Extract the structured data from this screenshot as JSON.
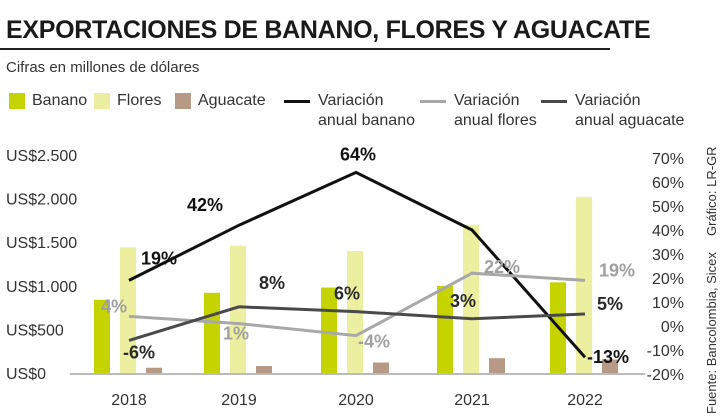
{
  "title": "EXPORTACIONES DE BANANO, FLORES Y AGUACATE",
  "subtitle": "Cifras en millones de dólares",
  "credit": "Gráfico: LR-GR",
  "source": "Fuente: Bancolombia, Sicex",
  "colors": {
    "banano": "#c5d300",
    "flores": "#ecef9f",
    "aguacate": "#b69a86",
    "var_banano": "#111111",
    "var_flores": "#a8a8a8",
    "var_aguacate": "#4a4a4a"
  },
  "chart_data": {
    "type": "bar",
    "categories": [
      "2018",
      "2019",
      "2020",
      "2021",
      "2022"
    ],
    "series": [
      {
        "name": "Banano",
        "type": "bar",
        "axis": "left",
        "values": [
          840,
          920,
          980,
          1000,
          1040
        ]
      },
      {
        "name": "Flores",
        "type": "bar",
        "axis": "left",
        "values": [
          1440,
          1460,
          1400,
          1700,
          2020
        ]
      },
      {
        "name": "Aguacate",
        "type": "bar",
        "axis": "left",
        "values": [
          60,
          80,
          120,
          170,
          155
        ]
      },
      {
        "name": "Variación\nanual banano",
        "type": "line",
        "axis": "right",
        "values": [
          19,
          42,
          64,
          40,
          -13
        ],
        "labels": [
          "19%",
          "42%",
          "64%",
          "",
          "-13%"
        ]
      },
      {
        "name": "Variación\nanual flores",
        "type": "line",
        "axis": "right",
        "values": [
          4,
          1,
          -4,
          22,
          19
        ],
        "labels": [
          "4%",
          "1%",
          "-4%",
          "22%",
          "19%"
        ]
      },
      {
        "name": "Variación\nanual aguacate",
        "type": "line",
        "axis": "right",
        "values": [
          -6,
          8,
          6,
          3,
          5
        ],
        "labels": [
          "-6%",
          "8%",
          "6%",
          "3%",
          "5%"
        ]
      }
    ],
    "y_left": {
      "ticks": [
        0,
        500,
        1000,
        1500,
        2000,
        2500
      ],
      "tick_labels": [
        "US$0",
        "US$500",
        "US$1.000",
        "US$1.500",
        "US$2.000",
        "US$2.500"
      ],
      "range": [
        0,
        2500
      ]
    },
    "y_right": {
      "ticks": [
        -20,
        -10,
        0,
        10,
        20,
        30,
        40,
        50,
        60,
        70
      ],
      "tick_labels": [
        "-20%",
        "-10%",
        "0%",
        "10%",
        "20%",
        "30%",
        "40%",
        "50%",
        "60%",
        "70%"
      ],
      "range": [
        -20,
        70
      ]
    },
    "grid": false,
    "legend_position": "top"
  }
}
